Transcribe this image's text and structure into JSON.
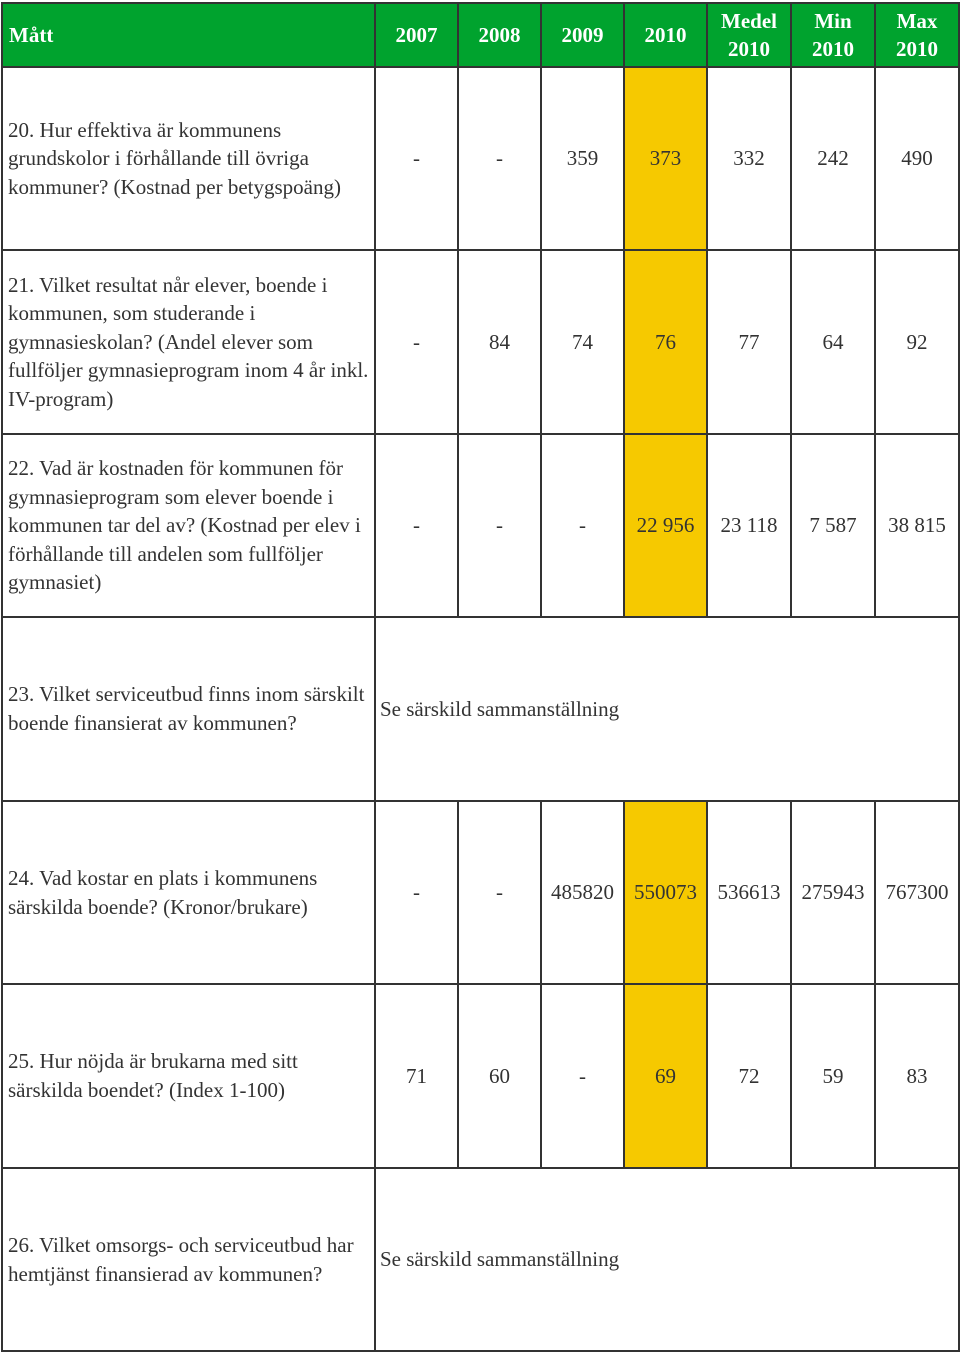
{
  "header": {
    "measure": "Mått",
    "y2007": "2007",
    "y2008": "2008",
    "y2009": "2009",
    "y2010": "2010",
    "avg_line1": "Medel",
    "avg_line2": "2010",
    "min_line1": "Min",
    "min_line2": "2010",
    "max_line1": "Max",
    "max_line2": "2010"
  },
  "colors": {
    "header_bg": "#00a32e",
    "highlight_2010": "#f6c900"
  },
  "rows": [
    {
      "question": "20. Hur effektiva är kommunens grundskolor i förhållande till övriga kommuner? (Kostnad per betygspoäng)",
      "y2007": "-",
      "y2008": "-",
      "y2009": "359",
      "y2010": "373",
      "avg": "332",
      "min": "242",
      "max": "490"
    },
    {
      "question": "21. Vilket resultat når elever, boende i kommunen, som studerande i gymnasieskolan? (Andel elever som fullföljer gymnasieprogram inom 4 år inkl. IV-program)",
      "y2007": "-",
      "y2008": "84",
      "y2009": "74",
      "y2010": "76",
      "avg": "77",
      "min": "64",
      "max": "92"
    },
    {
      "question": "22. Vad är kostnaden för kommunen för gymnasieprogram som elever boende i kommunen tar del av? (Kostnad per elev i förhållande till andelen som fullföljer gymnasiet)",
      "y2007": "-",
      "y2008": "-",
      "y2009": "-",
      "y2010": "22 956",
      "avg": "23 118",
      "min": "7 587",
      "max": "38 815"
    },
    {
      "question": "23. Vilket serviceutbud finns inom särskilt boende finansierat av kommunen?",
      "note": "Se särskild sammanställning"
    },
    {
      "question": "24. Vad kostar en plats i kommunens särskilda boende? (Kronor/brukare)",
      "y2007": "-",
      "y2008": "-",
      "y2009": "485820",
      "y2010": "550073",
      "avg": "536613",
      "min": "275943",
      "max": "767300"
    },
    {
      "question": "25. Hur nöjda är brukarna med sitt särskilda boendet? (Index 1-100)",
      "y2007": "71",
      "y2008": "60",
      "y2009": "-",
      "y2010": "69",
      "avg": "72",
      "min": "59",
      "max": "83"
    },
    {
      "question": "26. Vilket omsorgs- och serviceutbud har hemtjänst finansierad av kommunen?",
      "note": "Se särskild sammanställning"
    }
  ]
}
